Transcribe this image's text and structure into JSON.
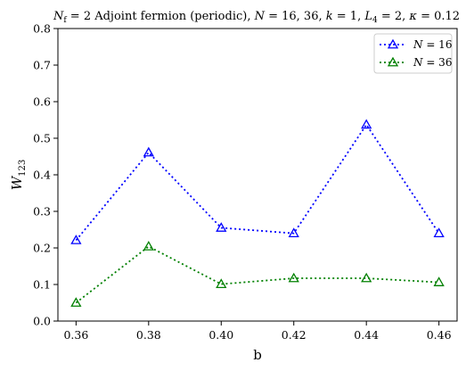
{
  "chart_data": {
    "type": "line",
    "title": "N_f = 2 Adjoint fermion (periodic), N = 16, 36,  k = 1,  L_4 = 2,  κ = 0.12",
    "title_parts": {
      "nf_sym": "N",
      "nf_sub": "f",
      "nf_val": " = 2 Adjoint fermion (periodic), ",
      "n_sym": "N",
      "n_val": " = 16, 36,  ",
      "k_sym": "k",
      "k_val": " = 1,  ",
      "l_sym": "L",
      "l_sub": "4",
      "l_val": " = 2,  ",
      "kappa_sym": "κ",
      "kappa_val": " = 0.12"
    },
    "xlabel": "b",
    "ylabel": "W",
    "ylabel_sub": "123",
    "x": [
      0.36,
      0.38,
      0.4,
      0.42,
      0.44,
      0.46
    ],
    "x_ticks": [
      "0.36",
      "0.38",
      "0.40",
      "0.42",
      "0.44",
      "0.46"
    ],
    "y_ticks": [
      "0.0",
      "0.1",
      "0.2",
      "0.3",
      "0.4",
      "0.5",
      "0.6",
      "0.7",
      "0.8"
    ],
    "xlim": [
      0.355,
      0.465
    ],
    "ylim": [
      0.0,
      0.8
    ],
    "grid": false,
    "legend_position": "top-right",
    "series": [
      {
        "name": "N = 16",
        "legend_sym": "N",
        "legend_val": " = 16",
        "color": "#0000ff",
        "marker": "triangle-open",
        "linestyle": "dotted",
        "values": [
          0.221,
          0.461,
          0.255,
          0.24,
          0.537,
          0.24
        ]
      },
      {
        "name": "N = 36",
        "legend_sym": "N",
        "legend_val": " = 36",
        "color": "#008000",
        "marker": "triangle-open",
        "linestyle": "dotted",
        "values": [
          0.05,
          0.204,
          0.101,
          0.117,
          0.117,
          0.106
        ]
      }
    ]
  }
}
